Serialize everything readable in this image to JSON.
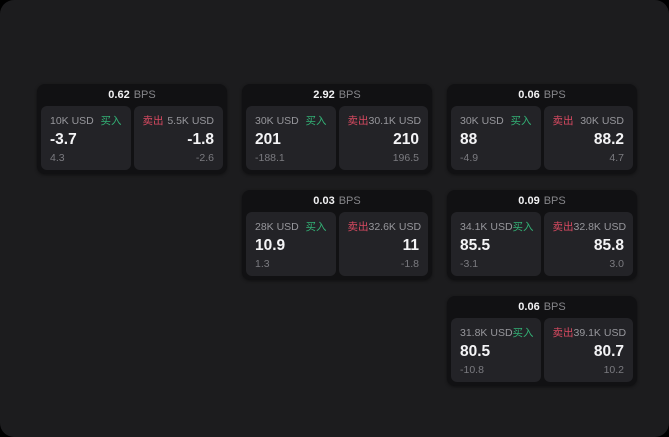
{
  "labels": {
    "bps": "BPS",
    "buy": "买入",
    "sell": "卖出"
  },
  "colors": {
    "buy_green": "#33b276",
    "sell_red": "#d84a61",
    "panel_bg": "#1c1c1e",
    "card_bg": "#111113",
    "pane_bg": "#232327"
  },
  "cards": [
    {
      "bps": "0.62",
      "buy": {
        "amount": "10K USD",
        "value": "-3.7",
        "delta": "4.3"
      },
      "sell": {
        "amount": "5.5K USD",
        "value": "-1.8",
        "delta": "-2.6"
      }
    },
    {
      "bps": "2.92",
      "buy": {
        "amount": "30K USD",
        "value": "201",
        "delta": "-188.1"
      },
      "sell": {
        "amount": "30.1K USD",
        "value": "210",
        "delta": "196.5"
      }
    },
    {
      "bps": "0.06",
      "buy": {
        "amount": "30K USD",
        "value": "88",
        "delta": "-4.9"
      },
      "sell": {
        "amount": "30K USD",
        "value": "88.2",
        "delta": "4.7"
      }
    },
    {
      "bps": "0.03",
      "buy": {
        "amount": "28K USD",
        "value": "10.9",
        "delta": "1.3"
      },
      "sell": {
        "amount": "32.6K USD",
        "value": "11",
        "delta": "-1.8"
      }
    },
    {
      "bps": "0.09",
      "buy": {
        "amount": "34.1K USD",
        "value": "85.5",
        "delta": "-3.1"
      },
      "sell": {
        "amount": "32.8K USD",
        "value": "85.8",
        "delta": "3.0"
      }
    },
    {
      "bps": "0.06",
      "buy": {
        "amount": "31.8K USD",
        "value": "80.5",
        "delta": "-10.8"
      },
      "sell": {
        "amount": "39.1K USD",
        "value": "80.7",
        "delta": "10.2"
      }
    }
  ]
}
